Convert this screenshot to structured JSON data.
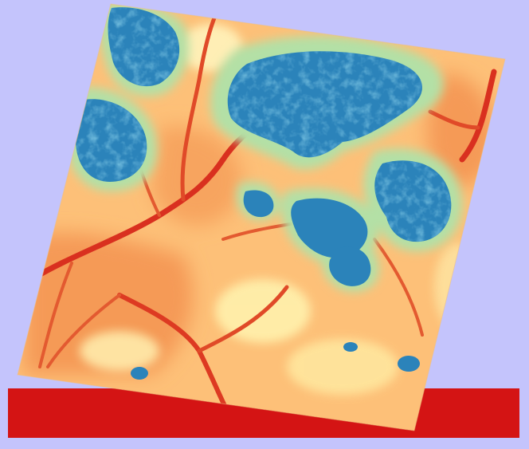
{
  "map": {
    "type": "raster-elevation",
    "tilted_footprint": true,
    "colors": {
      "background": "#c4c4fc",
      "bottom_band": "#d41414",
      "palette_low_to_high_spectral": [
        "#2b83ba",
        "#abdda4",
        "#ffffbf",
        "#fdae61",
        "#d7191c"
      ]
    },
    "zones": [
      {
        "name": "lowland-basins",
        "color": "#2b83ba"
      },
      {
        "name": "basin-rims",
        "color": "#abdda4"
      },
      {
        "name": "plateau",
        "color": "#ffffbf"
      },
      {
        "name": "slopes",
        "color": "#fdae61"
      },
      {
        "name": "ridges",
        "color": "#d7191c"
      }
    ]
  }
}
